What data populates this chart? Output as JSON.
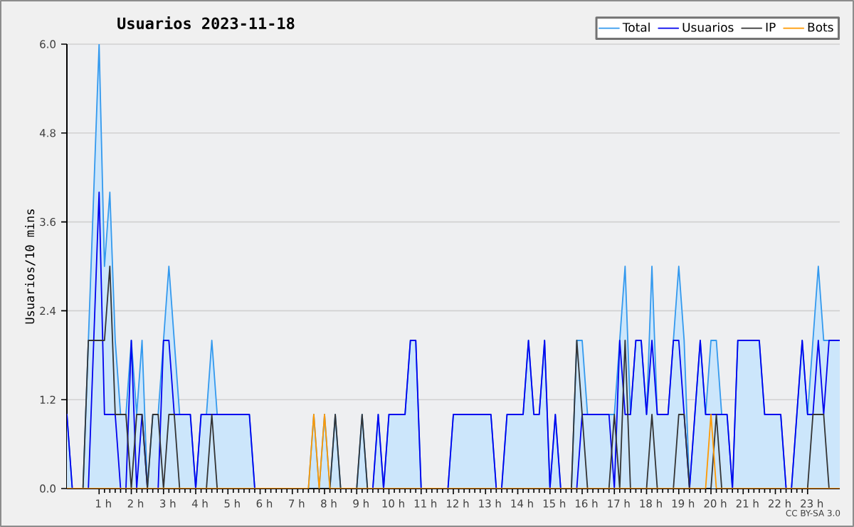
{
  "chart_data": {
    "type": "line",
    "title": "Usuarios  2023-11-18",
    "ylabel": "Usuarios/10 mins",
    "annotations": [
      "CC BY-SA 3.0"
    ],
    "xlim": [
      0,
      24
    ],
    "xticks": [
      {
        "value": 1,
        "label": "1 h"
      },
      {
        "value": 2,
        "label": "2 h"
      },
      {
        "value": 3,
        "label": "3 h"
      },
      {
        "value": 4,
        "label": "4 h"
      },
      {
        "value": 5,
        "label": "5 h"
      },
      {
        "value": 6,
        "label": "6 h"
      },
      {
        "value": 7,
        "label": "7 h"
      },
      {
        "value": 8,
        "label": "8 h"
      },
      {
        "value": 9,
        "label": "9 h"
      },
      {
        "value": 10,
        "label": "10 h"
      },
      {
        "value": 11,
        "label": "11 h"
      },
      {
        "value": 12,
        "label": "12 h"
      },
      {
        "value": 13,
        "label": "13 h"
      },
      {
        "value": 14,
        "label": "14 h"
      },
      {
        "value": 15,
        "label": "15 h"
      },
      {
        "value": 16,
        "label": "16 h"
      },
      {
        "value": 17,
        "label": "17 h"
      },
      {
        "value": 18,
        "label": "18 h"
      },
      {
        "value": 19,
        "label": "19 h"
      },
      {
        "value": 20,
        "label": "20 h"
      },
      {
        "value": 21,
        "label": "21 h"
      },
      {
        "value": 22,
        "label": "22 h"
      },
      {
        "value": 23,
        "label": "23 h"
      }
    ],
    "ylim": [
      0,
      6
    ],
    "yticks": [
      {
        "value": 0,
        "label": "0.0"
      },
      {
        "value": 1.2,
        "label": "1.2"
      },
      {
        "value": 2.4,
        "label": "2.4"
      },
      {
        "value": 3.6,
        "label": "3.6"
      },
      {
        "value": 4.8,
        "label": "4.8"
      },
      {
        "value": 6,
        "label": "6.0"
      }
    ],
    "grid": "y",
    "legend": "top right",
    "marker": "none",
    "line_style": "solid",
    "x": [
      0,
      0.1667,
      0.3333,
      0.5,
      0.6667,
      0.8333,
      1,
      1.1667,
      1.3333,
      1.5,
      1.6667,
      1.8333,
      2,
      2.1667,
      2.3333,
      2.5,
      2.6667,
      2.8333,
      3,
      3.1667,
      3.3333,
      3.5,
      3.6667,
      3.8333,
      4,
      4.1667,
      4.3333,
      4.5,
      4.6667,
      4.8333,
      5,
      5.1667,
      5.3333,
      5.5,
      5.6667,
      5.8333,
      6,
      6.1667,
      6.3333,
      6.5,
      6.6667,
      6.8333,
      7,
      7.1667,
      7.3333,
      7.5,
      7.6667,
      7.8333,
      8,
      8.1667,
      8.3333,
      8.5,
      8.6667,
      8.8333,
      9,
      9.1667,
      9.3333,
      9.5,
      9.6667,
      9.8333,
      10,
      10.1667,
      10.3333,
      10.5,
      10.6667,
      10.8333,
      11,
      11.1667,
      11.3333,
      11.5,
      11.6667,
      11.8333,
      12,
      12.1667,
      12.3333,
      12.5,
      12.6667,
      12.8333,
      13,
      13.1667,
      13.3333,
      13.5,
      13.6667,
      13.8333,
      14,
      14.1667,
      14.3333,
      14.5,
      14.6667,
      14.8333,
      15,
      15.1667,
      15.3333,
      15.5,
      15.6667,
      15.8333,
      16,
      16.1667,
      16.3333,
      16.5,
      16.6667,
      16.8333,
      17,
      17.1667,
      17.3333,
      17.5,
      17.6667,
      17.8333,
      18,
      18.1667,
      18.3333,
      18.5,
      18.6667,
      18.8333,
      19,
      19.1667,
      19.3333,
      19.5,
      19.6667,
      19.8333,
      20,
      20.1667,
      20.3333,
      20.5,
      20.6667,
      20.8333,
      21,
      21.1667,
      21.3333,
      21.5,
      21.6667,
      21.8333,
      22,
      22.1667,
      22.3333,
      22.5,
      22.6667,
      22.8333,
      23,
      23.1667,
      23.3333,
      23.5,
      23.6667,
      23.8333,
      24
    ],
    "series": [
      {
        "name": "Total",
        "type": "area",
        "color": "#3399ee",
        "values": [
          1,
          0,
          0,
          0,
          2,
          4,
          6,
          3,
          4,
          2,
          1,
          1,
          2,
          1,
          2,
          0,
          1,
          1,
          2,
          3,
          2,
          1,
          1,
          1,
          0,
          1,
          1,
          2,
          1,
          1,
          1,
          1,
          1,
          1,
          1,
          0,
          0,
          0,
          0,
          0,
          0,
          0,
          0,
          0,
          0,
          0,
          1,
          0,
          1,
          0,
          1,
          0,
          0,
          0,
          0,
          1,
          0,
          0,
          1,
          0,
          1,
          1,
          1,
          1,
          2,
          2,
          0,
          0,
          0,
          0,
          0,
          0,
          1,
          1,
          1,
          1,
          1,
          1,
          1,
          1,
          0,
          0,
          1,
          1,
          1,
          1,
          2,
          1,
          1,
          2,
          0,
          1,
          0,
          0,
          0,
          2,
          2,
          1,
          1,
          1,
          1,
          1,
          1,
          2,
          3,
          1,
          2,
          2,
          1,
          3,
          1,
          1,
          1,
          2,
          3,
          2,
          0,
          1,
          2,
          1,
          2,
          2,
          1,
          1,
          0,
          2,
          2,
          2,
          2,
          2,
          1,
          1,
          1,
          1,
          0,
          0,
          1,
          2,
          1,
          2,
          3,
          2,
          2,
          2,
          2
        ]
      },
      {
        "name": "Usuarios",
        "type": "line",
        "color": "#0000ee",
        "values": [
          1,
          0,
          0,
          0,
          0,
          2,
          4,
          1,
          1,
          1,
          0,
          0,
          2,
          0,
          1,
          0,
          0,
          0,
          2,
          2,
          1,
          1,
          1,
          1,
          0,
          1,
          1,
          1,
          1,
          1,
          1,
          1,
          1,
          1,
          1,
          0,
          0,
          0,
          0,
          0,
          0,
          0,
          0,
          0,
          0,
          0,
          0,
          0,
          0,
          0,
          0,
          0,
          0,
          0,
          0,
          0,
          0,
          0,
          1,
          0,
          1,
          1,
          1,
          1,
          2,
          2,
          0,
          0,
          0,
          0,
          0,
          0,
          1,
          1,
          1,
          1,
          1,
          1,
          1,
          1,
          0,
          0,
          1,
          1,
          1,
          1,
          2,
          1,
          1,
          2,
          0,
          1,
          0,
          0,
          0,
          0,
          1,
          1,
          1,
          1,
          1,
          1,
          0,
          2,
          1,
          1,
          2,
          2,
          1,
          2,
          1,
          1,
          1,
          2,
          2,
          1,
          0,
          1,
          2,
          1,
          1,
          1,
          1,
          1,
          0,
          2,
          2,
          2,
          2,
          2,
          1,
          1,
          1,
          1,
          0,
          0,
          1,
          2,
          1,
          1,
          2,
          1,
          2,
          2,
          2
        ]
      },
      {
        "name": "IP",
        "type": "line",
        "color": "#333333",
        "values": [
          0,
          0,
          0,
          0,
          2,
          2,
          2,
          2,
          3,
          1,
          1,
          1,
          0,
          1,
          1,
          0,
          1,
          1,
          0,
          1,
          1,
          0,
          0,
          0,
          0,
          0,
          0,
          1,
          0,
          0,
          0,
          0,
          0,
          0,
          0,
          0,
          0,
          0,
          0,
          0,
          0,
          0,
          0,
          0,
          0,
          0,
          0,
          0,
          0,
          0,
          1,
          0,
          0,
          0,
          0,
          1,
          0,
          0,
          0,
          0,
          0,
          0,
          0,
          0,
          0,
          0,
          0,
          0,
          0,
          0,
          0,
          0,
          0,
          0,
          0,
          0,
          0,
          0,
          0,
          0,
          0,
          0,
          0,
          0,
          0,
          0,
          0,
          0,
          0,
          0,
          0,
          0,
          0,
          0,
          0,
          2,
          1,
          0,
          0,
          0,
          0,
          0,
          1,
          0,
          2,
          0,
          0,
          0,
          0,
          1,
          0,
          0,
          0,
          0,
          1,
          1,
          0,
          0,
          0,
          0,
          0,
          1,
          0,
          0,
          0,
          0,
          0,
          0,
          0,
          0,
          0,
          0,
          0,
          0,
          0,
          0,
          0,
          0,
          0,
          1,
          1,
          1,
          0,
          0,
          0
        ]
      },
      {
        "name": "Bots",
        "type": "line",
        "color": "#ff9900",
        "values": [
          0,
          0,
          0,
          0,
          0,
          0,
          0,
          0,
          0,
          0,
          0,
          0,
          0,
          0,
          0,
          0,
          0,
          0,
          0,
          0,
          0,
          0,
          0,
          0,
          0,
          0,
          0,
          0,
          0,
          0,
          0,
          0,
          0,
          0,
          0,
          0,
          0,
          0,
          0,
          0,
          0,
          0,
          0,
          0,
          0,
          0,
          1,
          0,
          1,
          0,
          0,
          0,
          0,
          0,
          0,
          0,
          0,
          0,
          0,
          0,
          0,
          0,
          0,
          0,
          0,
          0,
          0,
          0,
          0,
          0,
          0,
          0,
          0,
          0,
          0,
          0,
          0,
          0,
          0,
          0,
          0,
          0,
          0,
          0,
          0,
          0,
          0,
          0,
          0,
          0,
          0,
          0,
          0,
          0,
          0,
          0,
          0,
          0,
          0,
          0,
          0,
          0,
          0,
          0,
          0,
          0,
          0,
          0,
          0,
          0,
          0,
          0,
          0,
          0,
          0,
          0,
          0,
          0,
          0,
          0,
          1,
          0,
          0,
          0,
          0,
          0,
          0,
          0,
          0,
          0,
          0,
          0,
          0,
          0,
          0,
          0,
          0,
          0,
          0,
          0,
          0,
          0,
          0,
          0,
          0
        ]
      }
    ]
  }
}
